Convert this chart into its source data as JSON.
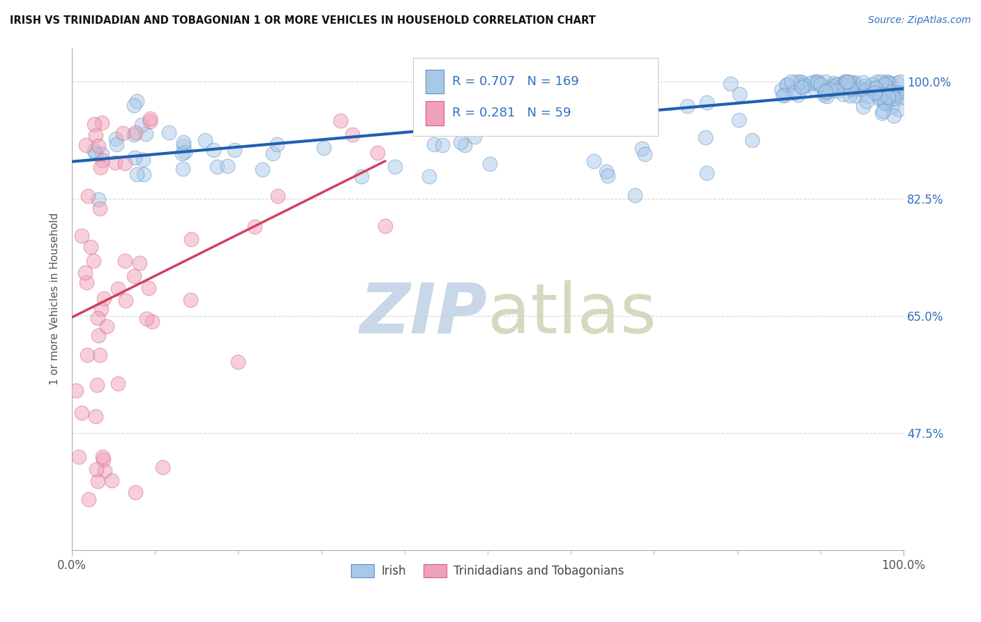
{
  "title": "IRISH VS TRINIDADIAN AND TOBAGONIAN 1 OR MORE VEHICLES IN HOUSEHOLD CORRELATION CHART",
  "source": "Source: ZipAtlas.com",
  "ylabel": "1 or more Vehicles in Household",
  "legend_irish": "Irish",
  "legend_tt": "Trinidadians and Tobagonians",
  "r_irish": 0.707,
  "n_irish": 169,
  "r_tt": 0.281,
  "n_tt": 59,
  "xlim": [
    0.0,
    1.0
  ],
  "ylim": [
    0.3,
    1.05
  ],
  "ytick_vals": [
    0.475,
    0.65,
    0.825,
    1.0
  ],
  "ytick_labels": [
    "47.5%",
    "65.0%",
    "82.5%",
    "100.0%"
  ],
  "background_color": "#ffffff",
  "irish_color": "#a8c8e8",
  "tt_color": "#f0a0b8",
  "irish_edge_color": "#6090c0",
  "tt_edge_color": "#d06080",
  "irish_line_color": "#2060b0",
  "tt_line_color": "#d04060",
  "legend_text_color": "#3070c0",
  "title_color": "#111111",
  "watermark_color": "#c8d8e8",
  "grid_color": "#cccccc",
  "yaxis_label_color": "#3070c0"
}
